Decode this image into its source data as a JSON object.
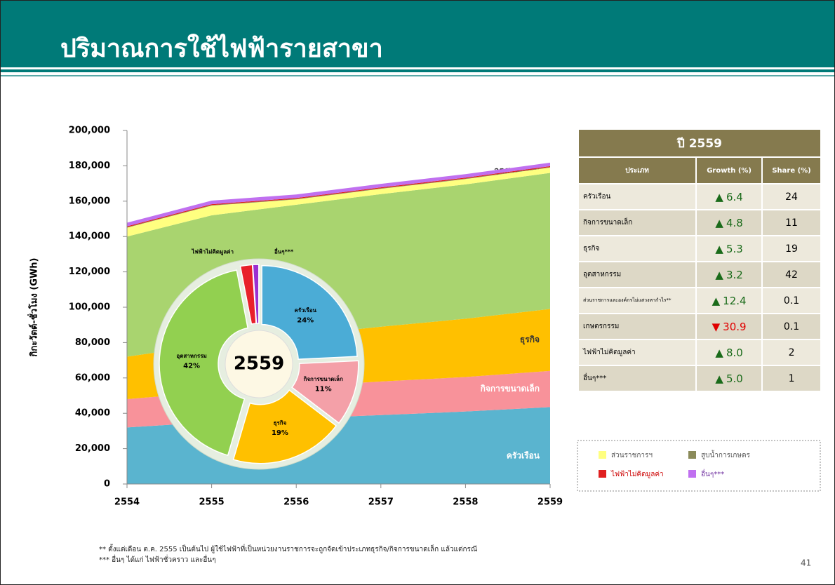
{
  "header": {
    "title": "ปริมาณการใช้ไฟฟ้ารายสาขา"
  },
  "chart_data": [
    {
      "type": "area",
      "stacked": true,
      "ylabel": "กิกะวัตต์-ชั่วโมง (GWh)",
      "categories": [
        "2554",
        "2555",
        "2556",
        "2557",
        "2558",
        "2559"
      ],
      "ylim": [
        0,
        200000
      ],
      "yticks": [
        0,
        {
          "value": 20000,
          "label": "20,000"
        },
        {
          "value": 40000,
          "label": "40,000"
        },
        {
          "value": 60000,
          "label": "60,000"
        },
        {
          "value": 80000,
          "label": "80,000"
        },
        {
          "value": 100000,
          "label": "100,000"
        },
        {
          "value": 120000,
          "label": "120,000"
        },
        {
          "value": 140000,
          "label": "140,000"
        },
        {
          "value": 160000,
          "label": "160,000"
        },
        {
          "value": 180000,
          "label": "180,000"
        },
        {
          "value": 200000,
          "label": "200,000"
        }
      ],
      "series": [
        {
          "name": "ครัวเรือน",
          "color": "#5ab4cf",
          "values": [
            32000,
            35000,
            37000,
            39000,
            41000,
            43500
          ]
        },
        {
          "name": "กิจการขนาดเล็ก",
          "color": "#f8929a",
          "values": [
            16000,
            17000,
            18000,
            19000,
            19500,
            20500
          ]
        },
        {
          "name": "ธุรกิจ",
          "color": "#ffc000",
          "values": [
            24000,
            27000,
            29000,
            31000,
            33000,
            35000
          ]
        },
        {
          "name": "อุตสาหกรรม",
          "color": "#a9d46f",
          "values": [
            68000,
            73000,
            74000,
            75000,
            76000,
            77000
          ]
        },
        {
          "name": "ส่วนราชการฯ",
          "color": "#ffff80",
          "values": [
            5000,
            5500,
            3000,
            3000,
            3000,
            3000
          ]
        },
        {
          "name": "สูบน้ำการเกษตร",
          "color": "#8b8b5a",
          "values": [
            300,
            300,
            300,
            300,
            300,
            300
          ]
        },
        {
          "name": "ไฟฟ้าไม่คิดมูลค่า",
          "color": "#e02020",
          "values": [
            500,
            500,
            500,
            500,
            500,
            500
          ]
        },
        {
          "name": "อื่นๆ***",
          "color": "#c070f0",
          "values": [
            2000,
            2000,
            2000,
            2000,
            2000,
            2000
          ]
        }
      ]
    },
    {
      "type": "pie",
      "center_label": "2559",
      "categories": [
        "ครัวเรือน",
        "กิจการขนาดเล็ก",
        "ธุรกิจ",
        "อุตสาหกรรม",
        "ไฟฟ้าไม่คิดมูลค่า",
        "อื่นๆ***"
      ],
      "values": [
        24,
        11,
        19,
        42,
        2,
        1
      ],
      "value_labels": [
        "24%",
        "11%",
        "19%",
        "42%",
        null,
        null
      ],
      "colors": [
        "#4bacd6",
        "#f4a0a8",
        "#ffc000",
        "#92d050",
        "#e8202a",
        "#9b30d0"
      ]
    }
  ],
  "table": {
    "title": "ปี 2559",
    "header": [
      "ประเภท",
      "Growth (%)",
      "Share (%)"
    ],
    "rows": [
      [
        "ครัวเรือน",
        "▲",
        "6.4",
        "24"
      ],
      [
        "กิจการขนาดเล็ก",
        "▲",
        "4.8",
        "11"
      ],
      [
        "ธุรกิจ",
        "▲",
        "5.3",
        "19"
      ],
      [
        "อุตสาหกรรม",
        "▲",
        "3.2",
        "42"
      ],
      [
        "ส่วนราชการและองค์กรไม่แสวงหากำไร**",
        "▲",
        "12.4",
        "0.1"
      ],
      [
        "เกษตรกรรม",
        "▼",
        "30.9",
        "0.1"
      ],
      [
        "ไฟฟ้าไม่คิดมูลค่า",
        "▲",
        "8.0",
        "2"
      ],
      [
        "อื่นๆ***",
        "▲",
        "5.0",
        "1"
      ]
    ]
  },
  "footnotes": [
    "** ตั้งแต่เดือน ต.ค. 2555 เป็นต้นไป  ผู้ใช้ไฟฟ้าที่เป็นหน่วยงานราชการจะถูกจัดเข้าประเภทธุรกิจ/กิจการขนาดเล็ก แล้วแต่กรณี",
    "***  อื่นๆ ได้แก่ ไฟฟ้าชั่วคราว และอื่นๆ"
  ],
  "page_number": "41"
}
